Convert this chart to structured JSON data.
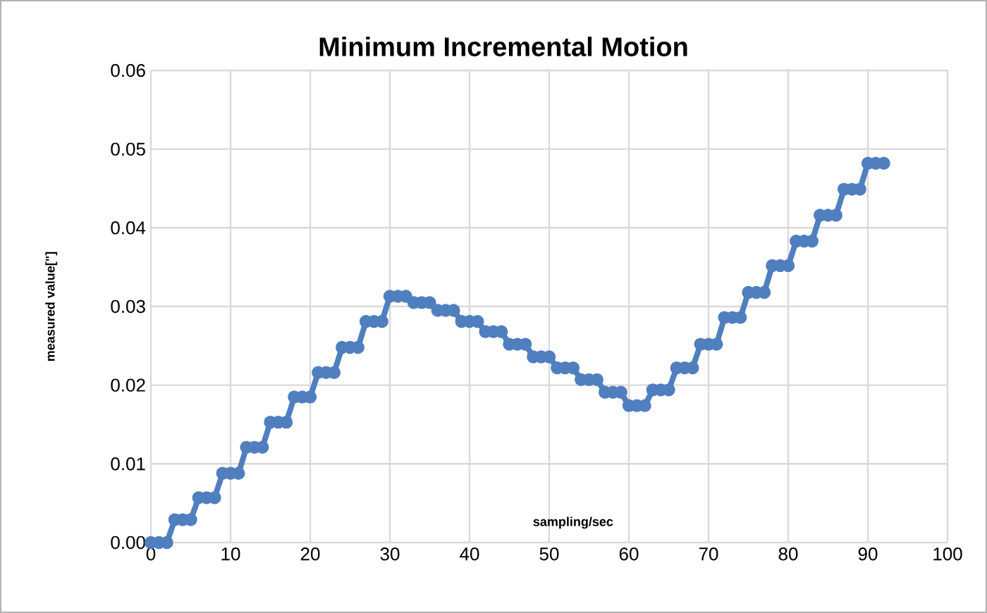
{
  "chart_data": {
    "type": "line",
    "title": "Minimum Incremental Motion",
    "xlabel": "sampling/sec",
    "ylabel": "measured value[\"]",
    "x": [
      0,
      1,
      2,
      3,
      4,
      5,
      6,
      7,
      8,
      9,
      10,
      11,
      12,
      13,
      14,
      15,
      16,
      17,
      18,
      19,
      20,
      21,
      22,
      23,
      24,
      25,
      26,
      27,
      28,
      29,
      30,
      31,
      32,
      33,
      34,
      35,
      36,
      37,
      38,
      39,
      40,
      41,
      42,
      43,
      44,
      45,
      46,
      47,
      48,
      49,
      50,
      51,
      52,
      53,
      54,
      55,
      56,
      57,
      58,
      59,
      60,
      61,
      62,
      63,
      64,
      65,
      66,
      67,
      68,
      69,
      70,
      71,
      72,
      73,
      74,
      75,
      76,
      77,
      78,
      79,
      80,
      81,
      82,
      83,
      84,
      85,
      86,
      87,
      88,
      89,
      90,
      91,
      92
    ],
    "series": [
      {
        "color": "#4f7fbf",
        "values": [
          0,
          0,
          0,
          0.0029,
          0.0029,
          0.0029,
          0.0057,
          0.0057,
          0.0057,
          0.0088,
          0.0088,
          0.0088,
          0.0121,
          0.0121,
          0.0121,
          0.0153,
          0.0153,
          0.0153,
          0.0185,
          0.0185,
          0.0185,
          0.0216,
          0.0216,
          0.0216,
          0.0248,
          0.0248,
          0.0248,
          0.0281,
          0.0281,
          0.0281,
          0.0313,
          0.0313,
          0.0313,
          0.0305,
          0.0305,
          0.0305,
          0.0295,
          0.0295,
          0.0295,
          0.0281,
          0.0281,
          0.0281,
          0.0268,
          0.0268,
          0.0268,
          0.0252,
          0.0252,
          0.0252,
          0.0236,
          0.0236,
          0.0236,
          0.0222,
          0.0222,
          0.0222,
          0.0207,
          0.0207,
          0.0207,
          0.0191,
          0.0191,
          0.0191,
          0.0174,
          0.0174,
          0.0174,
          0.0194,
          0.0194,
          0.0194,
          0.0222,
          0.0222,
          0.0222,
          0.0252,
          0.0252,
          0.0252,
          0.0286,
          0.0286,
          0.0286,
          0.0318,
          0.0318,
          0.0318,
          0.0352,
          0.0352,
          0.0352,
          0.0383,
          0.0383,
          0.0383,
          0.0416,
          0.0416,
          0.0416,
          0.0449,
          0.0449,
          0.0449,
          0.0482,
          0.0482,
          0.0482
        ]
      }
    ],
    "xlim": [
      0,
      100
    ],
    "xticks": [
      0,
      10,
      20,
      30,
      40,
      50,
      60,
      70,
      80,
      90,
      100
    ],
    "ylim": [
      0,
      0.06
    ],
    "yticks": [
      {
        "value": 0,
        "label": "0.00"
      },
      {
        "value": 0.01,
        "label": "0.01"
      },
      {
        "value": 0.02,
        "label": "0.02"
      },
      {
        "value": 0.03,
        "label": "0.03"
      },
      {
        "value": 0.04,
        "label": "0.04"
      },
      {
        "value": 0.05,
        "label": "0.05"
      },
      {
        "value": 0.06,
        "label": "0.06"
      }
    ],
    "grid": true,
    "marker": "circle",
    "line_style": "solid"
  }
}
